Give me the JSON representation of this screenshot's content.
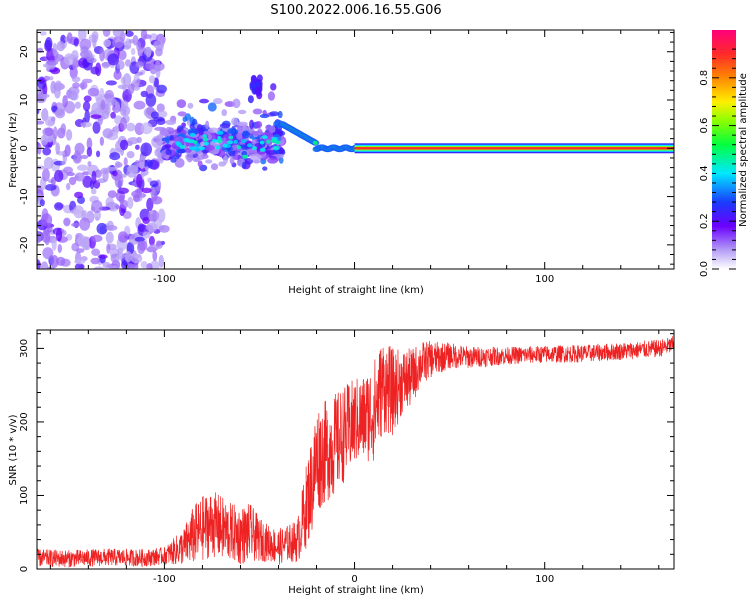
{
  "title": "S100.2022.006.16.55.G06",
  "colors": {
    "line": "#ee2222",
    "frame": "#000000"
  },
  "chart_data": [
    {
      "type": "heatmap",
      "xlabel": "Height of straight line (km)",
      "ylabel": "Frequency (Hz)",
      "xlim": [
        -167,
        168
      ],
      "ylim": [
        -25,
        24.5
      ],
      "xticks": [
        -100,
        0,
        100
      ],
      "xtick_labels": [
        "-100",
        "",
        "100"
      ],
      "yticks": [
        -20,
        -10,
        0,
        10,
        20
      ],
      "ytick_labels": [
        "-20",
        "-10",
        "0",
        "10",
        "20"
      ],
      "colormap": "rainbow",
      "colorbar": {
        "label": "Normalized spectral amplitude",
        "range": [
          0,
          1
        ],
        "ticks": [
          0.0,
          0.2,
          0.4,
          0.6,
          0.8
        ],
        "tick_labels": [
          "0.0",
          "0.2",
          "0.4",
          "0.6",
          "0.8"
        ]
      },
      "features": [
        {
          "x_range": [
            -167,
            -100
          ],
          "freq_range": [
            -24,
            24
          ],
          "amplitude": 0.2,
          "description": "diffuse noise"
        },
        {
          "x_range": [
            -100,
            -38
          ],
          "freq_range": [
            -6,
            8
          ],
          "amplitude": 0.25,
          "description": "scattered signal"
        },
        {
          "x_range": [
            -38,
            0
          ],
          "freq_center": [
            5,
            0
          ],
          "amplitude": 0.45,
          "description": "converging trace"
        },
        {
          "x_range": [
            0,
            168
          ],
          "freq_center": 0,
          "amplitude": 0.9,
          "description": "steady line"
        }
      ]
    },
    {
      "type": "line",
      "xlabel": "Height of straight line (km)",
      "ylabel": "SNR (10 * v/v)",
      "xlim": [
        -167,
        168
      ],
      "ylim": [
        0,
        325
      ],
      "xticks": [
        -100,
        0,
        100
      ],
      "xtick_labels": [
        "-100",
        "0",
        "100"
      ],
      "yticks": [
        0,
        100,
        200,
        300
      ],
      "ytick_labels": [
        "0",
        "100",
        "200",
        "300"
      ],
      "series": [
        {
          "x": [
            -167,
            -150,
            -130,
            -110,
            -100,
            -90,
            -85,
            -80,
            -75,
            -70,
            -65,
            -60,
            -55,
            -50,
            -45,
            -40,
            -35,
            -30,
            -25,
            -22,
            -20,
            -15,
            -10,
            -5,
            0,
            5,
            10,
            15,
            20,
            25,
            30,
            35,
            40,
            50,
            60,
            80,
            100,
            120,
            140,
            160,
            168
          ],
          "y": [
            15,
            14,
            16,
            15,
            18,
            30,
            45,
            55,
            62,
            55,
            50,
            45,
            50,
            40,
            35,
            30,
            35,
            38,
            90,
            120,
            150,
            160,
            170,
            185,
            200,
            205,
            215,
            250,
            240,
            255,
            260,
            280,
            285,
            290,
            288,
            290,
            292,
            293,
            296,
            300,
            305
          ],
          "noise": [
            12,
            12,
            12,
            12,
            12,
            25,
            40,
            45,
            45,
            45,
            40,
            40,
            40,
            30,
            25,
            25,
            25,
            30,
            60,
            70,
            75,
            70,
            70,
            65,
            60,
            60,
            70,
            65,
            60,
            45,
            40,
            30,
            25,
            18,
            15,
            12,
            12,
            12,
            12,
            12,
            12
          ]
        }
      ]
    }
  ]
}
